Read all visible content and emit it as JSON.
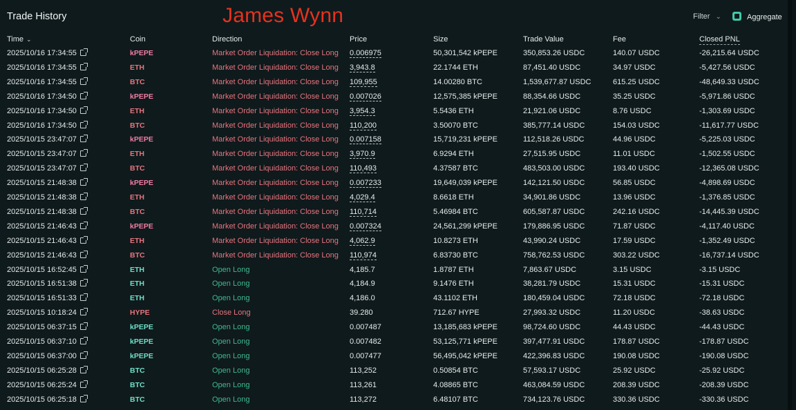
{
  "header": {
    "title": "Trade History",
    "overlay_name": "James Wynn",
    "filter_label": "Filter",
    "aggregate_label": "Aggregate"
  },
  "columns": {
    "time": "Time",
    "coin": "Coin",
    "direction": "Direction",
    "price": "Price",
    "size": "Size",
    "trade_value": "Trade Value",
    "fee": "Fee",
    "closed_pnl": "Closed PNL"
  },
  "colors": {
    "kPEPE": "#f07ea3",
    "ETH": "#e8747e",
    "BTC": "#e8747e",
    "HYPE": "#e8747e",
    "buy_coin": "#6fe0c8",
    "sell_dir": "#e8747e",
    "buy_dir": "#3fb98f",
    "overlay": "#e5321f"
  },
  "trades": [
    {
      "time": "2025/10/16 17:34:55",
      "coin": "kPEPE",
      "direction": "Market Order Liquidation: Close Long",
      "side": "sell",
      "price": "0.006975",
      "size": "50,301,542 kPEPE",
      "value": "350,853.26 USDC",
      "fee": "140.07 USDC",
      "pnl": "-26,215.64 USDC"
    },
    {
      "time": "2025/10/16 17:34:55",
      "coin": "ETH",
      "direction": "Market Order Liquidation: Close Long",
      "side": "sell",
      "price": "3,943.8",
      "size": "22.1744 ETH",
      "value": "87,451.40 USDC",
      "fee": "34.97 USDC",
      "pnl": "-5,427.56 USDC"
    },
    {
      "time": "2025/10/16 17:34:55",
      "coin": "BTC",
      "direction": "Market Order Liquidation: Close Long",
      "side": "sell",
      "price": "109,955",
      "size": "14.00280 BTC",
      "value": "1,539,677.87 USDC",
      "fee": "615.25 USDC",
      "pnl": "-48,649.33 USDC"
    },
    {
      "time": "2025/10/16 17:34:50",
      "coin": "kPEPE",
      "direction": "Market Order Liquidation: Close Long",
      "side": "sell",
      "price": "0.007026",
      "size": "12,575,385 kPEPE",
      "value": "88,354.66 USDC",
      "fee": "35.25 USDC",
      "pnl": "-5,971.86 USDC"
    },
    {
      "time": "2025/10/16 17:34:50",
      "coin": "ETH",
      "direction": "Market Order Liquidation: Close Long",
      "side": "sell",
      "price": "3,954.3",
      "size": "5.5436 ETH",
      "value": "21,921.06 USDC",
      "fee": "8.76 USDC",
      "pnl": "-1,303.69 USDC"
    },
    {
      "time": "2025/10/16 17:34:50",
      "coin": "BTC",
      "direction": "Market Order Liquidation: Close Long",
      "side": "sell",
      "price": "110,200",
      "size": "3.50070 BTC",
      "value": "385,777.14 USDC",
      "fee": "154.03 USDC",
      "pnl": "-11,617.77 USDC"
    },
    {
      "time": "2025/10/15 23:47:07",
      "coin": "kPEPE",
      "direction": "Market Order Liquidation: Close Long",
      "side": "sell",
      "price": "0.007158",
      "size": "15,719,231 kPEPE",
      "value": "112,518.26 USDC",
      "fee": "44.96 USDC",
      "pnl": "-5,225.03 USDC"
    },
    {
      "time": "2025/10/15 23:47:07",
      "coin": "ETH",
      "direction": "Market Order Liquidation: Close Long",
      "side": "sell",
      "price": "3,970.9",
      "size": "6.9294 ETH",
      "value": "27,515.95 USDC",
      "fee": "11.01 USDC",
      "pnl": "-1,502.55 USDC"
    },
    {
      "time": "2025/10/15 23:47:07",
      "coin": "BTC",
      "direction": "Market Order Liquidation: Close Long",
      "side": "sell",
      "price": "110,493",
      "size": "4.37587 BTC",
      "value": "483,503.00 USDC",
      "fee": "193.40 USDC",
      "pnl": "-12,365.08 USDC"
    },
    {
      "time": "2025/10/15 21:48:38",
      "coin": "kPEPE",
      "direction": "Market Order Liquidation: Close Long",
      "side": "sell",
      "price": "0.007233",
      "size": "19,649,039 kPEPE",
      "value": "142,121.50 USDC",
      "fee": "56.85 USDC",
      "pnl": "-4,898.69 USDC"
    },
    {
      "time": "2025/10/15 21:48:38",
      "coin": "ETH",
      "direction": "Market Order Liquidation: Close Long",
      "side": "sell",
      "price": "4,029.4",
      "size": "8.6618 ETH",
      "value": "34,901.86 USDC",
      "fee": "13.96 USDC",
      "pnl": "-1,376.85 USDC"
    },
    {
      "time": "2025/10/15 21:48:38",
      "coin": "BTC",
      "direction": "Market Order Liquidation: Close Long",
      "side": "sell",
      "price": "110,714",
      "size": "5.46984 BTC",
      "value": "605,587.87 USDC",
      "fee": "242.16 USDC",
      "pnl": "-14,445.39 USDC"
    },
    {
      "time": "2025/10/15 21:46:43",
      "coin": "kPEPE",
      "direction": "Market Order Liquidation: Close Long",
      "side": "sell",
      "price": "0.007324",
      "size": "24,561,299 kPEPE",
      "value": "179,886.95 USDC",
      "fee": "71.87 USDC",
      "pnl": "-4,117.40 USDC"
    },
    {
      "time": "2025/10/15 21:46:43",
      "coin": "ETH",
      "direction": "Market Order Liquidation: Close Long",
      "side": "sell",
      "price": "4,062.9",
      "size": "10.8273 ETH",
      "value": "43,990.24 USDC",
      "fee": "17.59 USDC",
      "pnl": "-1,352.49 USDC"
    },
    {
      "time": "2025/10/15 21:46:43",
      "coin": "BTC",
      "direction": "Market Order Liquidation: Close Long",
      "side": "sell",
      "price": "110,974",
      "size": "6.83730 BTC",
      "value": "758,762.53 USDC",
      "fee": "303.22 USDC",
      "pnl": "-16,737.14 USDC"
    },
    {
      "time": "2025/10/15 16:52:45",
      "coin": "ETH",
      "direction": "Open Long",
      "side": "buy",
      "price": "4,185.7",
      "size": "1.8787 ETH",
      "value": "7,863.67 USDC",
      "fee": "3.15 USDC",
      "pnl": "-3.15 USDC"
    },
    {
      "time": "2025/10/15 16:51:38",
      "coin": "ETH",
      "direction": "Open Long",
      "side": "buy",
      "price": "4,184.9",
      "size": "9.1476 ETH",
      "value": "38,281.79 USDC",
      "fee": "15.31 USDC",
      "pnl": "-15.31 USDC"
    },
    {
      "time": "2025/10/15 16:51:33",
      "coin": "ETH",
      "direction": "Open Long",
      "side": "buy",
      "price": "4,186.0",
      "size": "43.1102 ETH",
      "value": "180,459.04 USDC",
      "fee": "72.18 USDC",
      "pnl": "-72.18 USDC"
    },
    {
      "time": "2025/10/15 10:18:24",
      "coin": "HYPE",
      "direction": "Close Long",
      "side": "sell",
      "price": "39.280",
      "size": "712.67 HYPE",
      "value": "27,993.32 USDC",
      "fee": "11.20 USDC",
      "pnl": "-38.63 USDC"
    },
    {
      "time": "2025/10/15 06:37:15",
      "coin": "kPEPE",
      "direction": "Open Long",
      "side": "buy",
      "price": "0.007487",
      "size": "13,185,683 kPEPE",
      "value": "98,724.60 USDC",
      "fee": "44.43 USDC",
      "pnl": "-44.43 USDC"
    },
    {
      "time": "2025/10/15 06:37:10",
      "coin": "kPEPE",
      "direction": "Open Long",
      "side": "buy",
      "price": "0.007482",
      "size": "53,125,771 kPEPE",
      "value": "397,477.91 USDC",
      "fee": "178.87 USDC",
      "pnl": "-178.87 USDC"
    },
    {
      "time": "2025/10/15 06:37:00",
      "coin": "kPEPE",
      "direction": "Open Long",
      "side": "buy",
      "price": "0.007477",
      "size": "56,495,042 kPEPE",
      "value": "422,396.83 USDC",
      "fee": "190.08 USDC",
      "pnl": "-190.08 USDC"
    },
    {
      "time": "2025/10/15 06:25:28",
      "coin": "BTC",
      "direction": "Open Long",
      "side": "buy",
      "price": "113,252",
      "size": "0.50854 BTC",
      "value": "57,593.17 USDC",
      "fee": "25.92 USDC",
      "pnl": "-25.92 USDC"
    },
    {
      "time": "2025/10/15 06:25:24",
      "coin": "BTC",
      "direction": "Open Long",
      "side": "buy",
      "price": "113,261",
      "size": "4.08865 BTC",
      "value": "463,084.59 USDC",
      "fee": "208.39 USDC",
      "pnl": "-208.39 USDC"
    },
    {
      "time": "2025/10/15 06:25:18",
      "coin": "BTC",
      "direction": "Open Long",
      "side": "buy",
      "price": "113,272",
      "size": "6.48107 BTC",
      "value": "734,123.76 USDC",
      "fee": "330.36 USDC",
      "pnl": "-330.36 USDC"
    }
  ]
}
